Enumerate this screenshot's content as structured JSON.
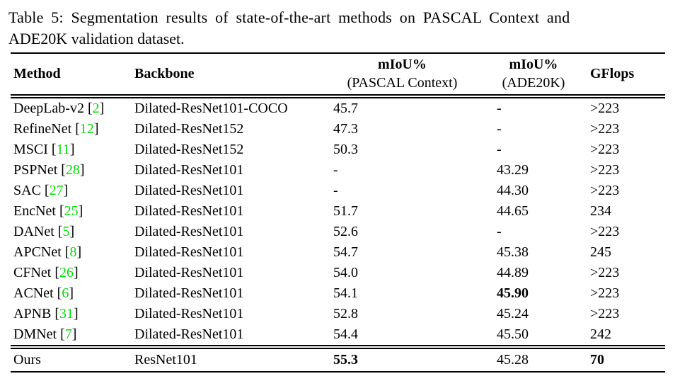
{
  "caption": {
    "line1": "Table 5: Segmentation results of state-of-the-art methods on PASCAL Context and",
    "line2": "ADE20K validation dataset."
  },
  "table": {
    "columns": [
      {
        "label": "Method",
        "sub": ""
      },
      {
        "label": "Backbone",
        "sub": ""
      },
      {
        "label": "mIoU%",
        "sub": "(PASCAL Context)"
      },
      {
        "label": "mIoU%",
        "sub": "(ADE20K)"
      },
      {
        "label": "GFlops",
        "sub": ""
      }
    ],
    "rows": [
      {
        "method": "DeepLab-v2",
        "cite": "2",
        "backbone": "Dilated-ResNet101-COCO",
        "pascal": "45.7",
        "ade": "-",
        "gflops": ">223"
      },
      {
        "method": "RefineNet",
        "cite": "12",
        "backbone": "Dilated-ResNet152",
        "pascal": "47.3",
        "ade": "-",
        "gflops": ">223"
      },
      {
        "method": "MSCI",
        "cite": "11",
        "backbone": "Dilated-ResNet152",
        "pascal": "50.3",
        "ade": "-",
        "gflops": ">223"
      },
      {
        "method": "PSPNet",
        "cite": "28",
        "backbone": "Dilated-ResNet101",
        "pascal": "-",
        "ade": "43.29",
        "gflops": ">223"
      },
      {
        "method": "SAC",
        "cite": "27",
        "backbone": "Dilated-ResNet101",
        "pascal": "-",
        "ade": "44.30",
        "gflops": ">223"
      },
      {
        "method": "EncNet",
        "cite": "25",
        "backbone": "Dilated-ResNet101",
        "pascal": "51.7",
        "ade": "44.65",
        "gflops": "234"
      },
      {
        "method": "DANet",
        "cite": "5",
        "backbone": "Dilated-ResNet101",
        "pascal": "52.6",
        "ade": "-",
        "gflops": ">223"
      },
      {
        "method": "APCNet",
        "cite": "8",
        "backbone": "Dilated-ResNet101",
        "pascal": "54.7",
        "ade": "45.38",
        "gflops": "245"
      },
      {
        "method": "CFNet",
        "cite": "26",
        "backbone": "Dilated-ResNet101",
        "pascal": "54.0",
        "ade": "44.89",
        "gflops": ">223"
      },
      {
        "method": "ACNet",
        "cite": "6",
        "backbone": "Dilated-ResNet101",
        "pascal": "54.1",
        "ade": "45.90",
        "ade_bold": true,
        "gflops": ">223"
      },
      {
        "method": "APNB",
        "cite": "31",
        "backbone": "Dilated-ResNet101",
        "pascal": "52.8",
        "ade": "45.24",
        "gflops": ">223"
      },
      {
        "method": "DMNet",
        "cite": "7",
        "backbone": "Dilated-ResNet101",
        "pascal": "54.4",
        "ade": "45.50",
        "gflops": "242"
      },
      {
        "method": "Ours",
        "cite": "",
        "backbone": "ResNet101",
        "pascal": "55.3",
        "pascal_bold": true,
        "ade": "45.28",
        "gflops": "70",
        "gflops_bold": true,
        "is_ours": true
      }
    ]
  },
  "colors": {
    "citation_green": "#00dd00",
    "text": "#000000",
    "background": "#ffffff"
  }
}
